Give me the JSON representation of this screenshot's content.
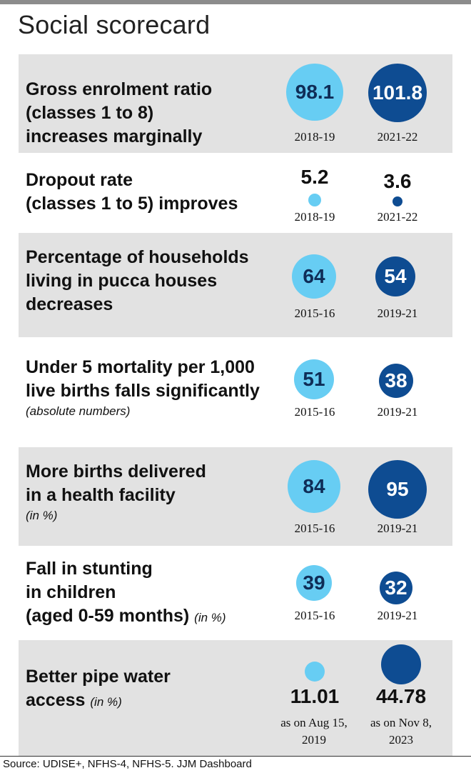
{
  "title": "Social scorecard",
  "source": "Source: UDISE+, NFHS-4, NFHS-5. JJM Dashboard",
  "colors": {
    "earlier": "#67cdf3",
    "later": "#0e4c92",
    "shade": "#e2e2e2"
  },
  "chart_data": {
    "type": "table",
    "rows": [
      {
        "label": "Gross enrolment ratio\n(classes 1 to 8)\nincreases marginally",
        "note": "",
        "values": [
          98.1,
          101.8
        ],
        "value_labels": [
          "98.1",
          "101.8"
        ],
        "periods": [
          "2018-19",
          "2021-22"
        ]
      },
      {
        "label": "Dropout rate\n(classes 1 to 5) improves",
        "note": "",
        "values": [
          5.2,
          3.6
        ],
        "value_labels": [
          "5.2",
          "3.6"
        ],
        "periods": [
          "2018-19",
          "2021-22"
        ]
      },
      {
        "label": "Percentage of households\nliving in pucca houses\ndecreases",
        "note": "",
        "values": [
          64,
          54
        ],
        "value_labels": [
          "64",
          "54"
        ],
        "periods": [
          "2015-16",
          "2019-21"
        ]
      },
      {
        "label": "Under 5 mortality per 1,000\nlive births falls significantly",
        "note": "(absolute numbers)",
        "values": [
          51,
          38
        ],
        "value_labels": [
          "51",
          "38"
        ],
        "periods": [
          "2015-16",
          "2019-21"
        ]
      },
      {
        "label": "More births delivered\nin a health facility",
        "note": "(in %)",
        "values": [
          84,
          95
        ],
        "value_labels": [
          "84",
          "95"
        ],
        "periods": [
          "2015-16",
          "2019-21"
        ]
      },
      {
        "label": "Fall in stunting\nin children\n(aged 0-59 months)",
        "note": "(in %)",
        "values": [
          39,
          32
        ],
        "value_labels": [
          "39",
          "32"
        ],
        "periods": [
          "2015-16",
          "2019-21"
        ]
      },
      {
        "label": "Better pipe water\naccess",
        "note": "(in %)",
        "values": [
          11.01,
          44.78
        ],
        "value_labels": [
          "11.01",
          "44.78"
        ],
        "periods": [
          "as on Aug 15,\n2019",
          "as on Nov 8,\n2023"
        ]
      }
    ]
  }
}
